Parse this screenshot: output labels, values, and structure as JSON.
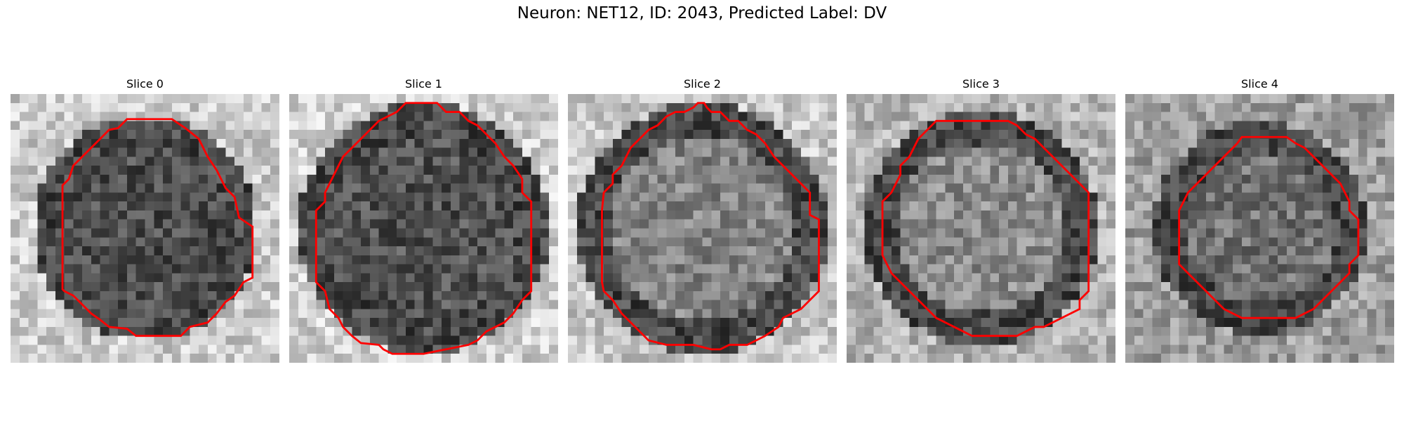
{
  "figure": {
    "title": "Neuron: NET12, ID: 2043, Predicted Label: DV"
  },
  "colors": {
    "contour": "#ff0000",
    "background": "#ffffff"
  },
  "grid_size": 30,
  "slices": [
    {
      "title": "Slice 0",
      "contour": [
        [
          13,
          2.8
        ],
        [
          18,
          2.8
        ],
        [
          19.5,
          3.8
        ],
        [
          21,
          5
        ],
        [
          22,
          7
        ],
        [
          23,
          8.5
        ],
        [
          24,
          10.5
        ],
        [
          25,
          11.5
        ],
        [
          25.5,
          13.8
        ],
        [
          27,
          14.8
        ],
        [
          27,
          20.5
        ],
        [
          26,
          21
        ],
        [
          25,
          22.5
        ],
        [
          24,
          23.2
        ],
        [
          23,
          24.5
        ],
        [
          22,
          25.5
        ],
        [
          20,
          26
        ],
        [
          19,
          27
        ],
        [
          18,
          27
        ],
        [
          14,
          27
        ],
        [
          13,
          26.2
        ],
        [
          11,
          26
        ],
        [
          10,
          25.2
        ],
        [
          9,
          24.5
        ],
        [
          8,
          23.5
        ],
        [
          7,
          22.5
        ],
        [
          6,
          22
        ],
        [
          5.8,
          21.8
        ],
        [
          5.8,
          10.2
        ],
        [
          6.5,
          9.5
        ],
        [
          7,
          8
        ],
        [
          8,
          7
        ],
        [
          10,
          5
        ],
        [
          11,
          4
        ],
        [
          12,
          3.8
        ]
      ],
      "center": 0.3,
      "edge": 0.8,
      "radius": 11
    },
    {
      "title": "Slice 1",
      "contour": [
        [
          13,
          1
        ],
        [
          14,
          1
        ],
        [
          16.5,
          1
        ],
        [
          17,
          1.5
        ],
        [
          17.5,
          2
        ],
        [
          19,
          2
        ],
        [
          20,
          3
        ],
        [
          21,
          3.5
        ],
        [
          22,
          4.5
        ],
        [
          23,
          5.5
        ],
        [
          24,
          7
        ],
        [
          25,
          8
        ],
        [
          26,
          9.5
        ],
        [
          26,
          11
        ],
        [
          27,
          12
        ],
        [
          27,
          22
        ],
        [
          26.5,
          22.5
        ],
        [
          26,
          23
        ],
        [
          25,
          24.5
        ],
        [
          24,
          25.5
        ],
        [
          23,
          26
        ],
        [
          22,
          26.5
        ],
        [
          21,
          27.5
        ],
        [
          20,
          28
        ],
        [
          16,
          28.8
        ],
        [
          15,
          29
        ],
        [
          11.5,
          29
        ],
        [
          10.5,
          28.5
        ],
        [
          10,
          28
        ],
        [
          8,
          27.8
        ],
        [
          7,
          27
        ],
        [
          6,
          26
        ],
        [
          5.5,
          25
        ],
        [
          4.5,
          24
        ],
        [
          4,
          22
        ],
        [
          3,
          21
        ],
        [
          3,
          13
        ],
        [
          4,
          12
        ],
        [
          4,
          11
        ],
        [
          5,
          9
        ],
        [
          5.5,
          8
        ],
        [
          6,
          7
        ],
        [
          7,
          6
        ],
        [
          8,
          5
        ],
        [
          9,
          4
        ],
        [
          10,
          3
        ],
        [
          11,
          2.5
        ],
        [
          12,
          2
        ]
      ],
      "center": 0.32,
      "edge": 0.82,
      "radius": 12.5
    },
    {
      "title": "Slice 2",
      "contour": [
        [
          14.5,
          1
        ],
        [
          15.2,
          1
        ],
        [
          15.5,
          1.5
        ],
        [
          16,
          2
        ],
        [
          17,
          2
        ],
        [
          18,
          3
        ],
        [
          19,
          3
        ],
        [
          20,
          4
        ],
        [
          21,
          4.5
        ],
        [
          22,
          5.5
        ],
        [
          23,
          7
        ],
        [
          24,
          8
        ],
        [
          25,
          9
        ],
        [
          27,
          11
        ],
        [
          27,
          13.5
        ],
        [
          28,
          14
        ],
        [
          28,
          22
        ],
        [
          27,
          23
        ],
        [
          26,
          24
        ],
        [
          25,
          24.5
        ],
        [
          24,
          25
        ],
        [
          23.5,
          26
        ],
        [
          22,
          27
        ],
        [
          21,
          27.5
        ],
        [
          20,
          28
        ],
        [
          19,
          28
        ],
        [
          18,
          28
        ],
        [
          17,
          28.5
        ],
        [
          16,
          28.5
        ],
        [
          14,
          28
        ],
        [
          11,
          28
        ],
        [
          9,
          27.5
        ],
        [
          8,
          26.5
        ],
        [
          7,
          25.5
        ],
        [
          6,
          24.5
        ],
        [
          5,
          23
        ],
        [
          4,
          22
        ],
        [
          3.8,
          21
        ],
        [
          3.8,
          13
        ],
        [
          4,
          11
        ],
        [
          5,
          10
        ],
        [
          5,
          9
        ],
        [
          6,
          8
        ],
        [
          6.5,
          7
        ],
        [
          7,
          6
        ],
        [
          8,
          5
        ],
        [
          9,
          4
        ],
        [
          10,
          3.5
        ],
        [
          11,
          2.5
        ],
        [
          12,
          2
        ],
        [
          13,
          2
        ],
        [
          14,
          1.5
        ]
      ],
      "center": 0.52,
      "edge": 0.78,
      "radius": 12.5
    },
    {
      "title": "Slice 3",
      "contour": [
        [
          10,
          3
        ],
        [
          14,
          3
        ],
        [
          18,
          3
        ],
        [
          19,
          3.5
        ],
        [
          19.5,
          4
        ],
        [
          20,
          4.5
        ],
        [
          21,
          5
        ],
        [
          22,
          6
        ],
        [
          23,
          7
        ],
        [
          24,
          8
        ],
        [
          25,
          9
        ],
        [
          26,
          10
        ],
        [
          27,
          11
        ],
        [
          27,
          22
        ],
        [
          26,
          23
        ],
        [
          26,
          24
        ],
        [
          25,
          24.5
        ],
        [
          24,
          25
        ],
        [
          23,
          25.5
        ],
        [
          22,
          26
        ],
        [
          21,
          26
        ],
        [
          20,
          26.5
        ],
        [
          19,
          27
        ],
        [
          18,
          27
        ],
        [
          14,
          27
        ],
        [
          13,
          26.5
        ],
        [
          12,
          26
        ],
        [
          11,
          25.5
        ],
        [
          10,
          25
        ],
        [
          9,
          24
        ],
        [
          8,
          23
        ],
        [
          7,
          22
        ],
        [
          6,
          21
        ],
        [
          5,
          20
        ],
        [
          4.5,
          19
        ],
        [
          4,
          18
        ],
        [
          4,
          14
        ],
        [
          4,
          12
        ],
        [
          5,
          11
        ],
        [
          5.5,
          10
        ],
        [
          6,
          9
        ],
        [
          6,
          8
        ],
        [
          7,
          7
        ],
        [
          7.5,
          6
        ],
        [
          8,
          5
        ],
        [
          9,
          4
        ],
        [
          9.5,
          3.5
        ]
      ],
      "center": 0.55,
      "edge": 0.7,
      "radius": 11.5
    },
    {
      "title": "Slice 4",
      "contour": [
        [
          13,
          4.8
        ],
        [
          18,
          4.8
        ],
        [
          19,
          5.5
        ],
        [
          20,
          6
        ],
        [
          21,
          7
        ],
        [
          22,
          8
        ],
        [
          23,
          9
        ],
        [
          24,
          10
        ],
        [
          24.5,
          11
        ],
        [
          25,
          12
        ],
        [
          25,
          13
        ],
        [
          26,
          14
        ],
        [
          26,
          16
        ],
        [
          26,
          18
        ],
        [
          25,
          19
        ],
        [
          25,
          20
        ],
        [
          24,
          21
        ],
        [
          23,
          22
        ],
        [
          22,
          23
        ],
        [
          21,
          24
        ],
        [
          20,
          24.5
        ],
        [
          19,
          25
        ],
        [
          13,
          25
        ],
        [
          12,
          24.5
        ],
        [
          11,
          24
        ],
        [
          10,
          23
        ],
        [
          9,
          22
        ],
        [
          8,
          21
        ],
        [
          7,
          20
        ],
        [
          6,
          19
        ],
        [
          6,
          13
        ],
        [
          7,
          11
        ],
        [
          8,
          10
        ],
        [
          9,
          9
        ],
        [
          10,
          8
        ],
        [
          11,
          7
        ],
        [
          12,
          6
        ],
        [
          12.5,
          5.5
        ]
      ],
      "center": 0.45,
      "edge": 0.62,
      "radius": 10.5
    }
  ]
}
